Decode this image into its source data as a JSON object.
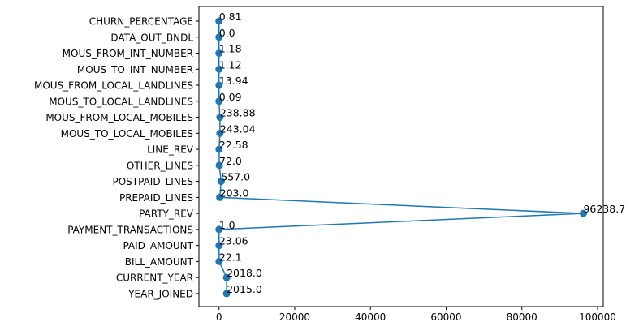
{
  "chart_data": {
    "type": "line",
    "orientation": "horizontal",
    "title": "",
    "xlabel": "",
    "ylabel": "",
    "xlim": [
      -5300,
      101500
    ],
    "x_ticks": [
      0,
      20000,
      40000,
      60000,
      80000,
      100000
    ],
    "x_tick_labels": [
      "0",
      "20000",
      "40000",
      "60000",
      "80000",
      "100000"
    ],
    "grid": false,
    "legend": false,
    "series": [
      {
        "name": "values",
        "color": "#1f77b4",
        "marker": "circle",
        "points": [
          {
            "category": "CHURN_PERCENTAGE",
            "value": 0.81,
            "label": "0.81"
          },
          {
            "category": "DATA_OUT_BNDL",
            "value": 0.0,
            "label": "0.0"
          },
          {
            "category": "MOUS_FROM_INT_NUMBER",
            "value": 1.18,
            "label": "1.18"
          },
          {
            "category": "MOUS_TO_INT_NUMBER",
            "value": 1.12,
            "label": "1.12"
          },
          {
            "category": "MOUS_FROM_LOCAL_LANDLINES",
            "value": 13.94,
            "label": "13.94"
          },
          {
            "category": "MOUS_TO_LOCAL_LANDLINES",
            "value": 0.09,
            "label": "0.09"
          },
          {
            "category": "MOUS_FROM_LOCAL_MOBILES",
            "value": 238.88,
            "label": "238.88"
          },
          {
            "category": "MOUS_TO_LOCAL_MOBILES",
            "value": 243.04,
            "label": "243.04"
          },
          {
            "category": "LINE_REV",
            "value": 22.58,
            "label": "22.58"
          },
          {
            "category": "OTHER_LINES",
            "value": 72.0,
            "label": "72.0"
          },
          {
            "category": "POSTPAID_LINES",
            "value": 557.0,
            "label": "557.0"
          },
          {
            "category": "PREPAID_LINES",
            "value": 203.0,
            "label": "203.0"
          },
          {
            "category": "PARTY_REV",
            "value": 96238.7,
            "label": "96238.7"
          },
          {
            "category": "PAYMENT_TRANSACTIONS",
            "value": 1.0,
            "label": "1.0"
          },
          {
            "category": "PAID_AMOUNT",
            "value": 23.06,
            "label": "23.06"
          },
          {
            "category": "BILL_AMOUNT",
            "value": 22.1,
            "label": "22.1"
          },
          {
            "category": "CURRENT_YEAR",
            "value": 2018.0,
            "label": "2018.0"
          },
          {
            "category": "YEAR_JOINED",
            "value": 2015.0,
            "label": "2015.0"
          }
        ]
      }
    ]
  }
}
